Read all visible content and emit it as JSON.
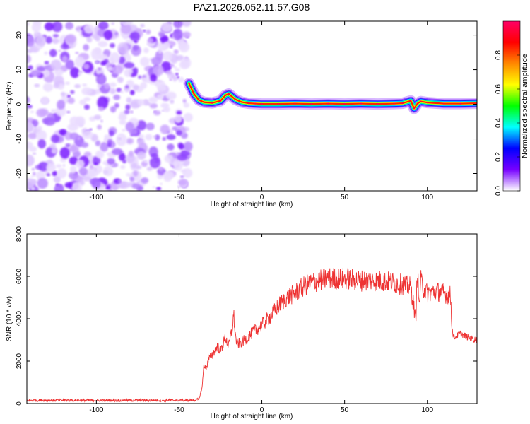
{
  "chart_data": [
    {
      "type": "heatmap",
      "title": "PAZ1.2026.052.11.57.G08",
      "xlabel": "Height of straight line (km)",
      "ylabel": "Frequency (Hz)",
      "xlim": [
        -142,
        130
      ],
      "ylim": [
        -25,
        24
      ],
      "xticks": [
        -100,
        -50,
        0,
        50,
        100
      ],
      "yticks": [
        -20,
        -10,
        0,
        10,
        20
      ],
      "noise_region_x": [
        -142,
        -44
      ],
      "ridge": {
        "x": [
          -44,
          -41,
          -38,
          -35,
          -30,
          -25,
          -22,
          -20,
          -16,
          -12,
          -8,
          -4,
          0,
          10,
          20,
          30,
          40,
          50,
          60,
          70,
          80,
          85,
          90,
          92,
          94,
          96,
          100,
          110,
          120,
          130
        ],
        "freq": [
          6,
          3,
          1.2,
          0.6,
          0.4,
          1.0,
          2.6,
          3.0,
          1.4,
          0.6,
          0.3,
          0.2,
          0.1,
          0.1,
          0.2,
          0.1,
          0.2,
          0.1,
          0.2,
          0.1,
          0.2,
          0.3,
          1.0,
          -1.2,
          0.2,
          0.8,
          0.5,
          0.2,
          0.2,
          0.3
        ]
      },
      "colorbar": {
        "label": "Normalized spectral amplitude",
        "range": [
          0,
          1
        ],
        "ticks": [
          "0.0",
          "0.2",
          "0.4",
          "0.6",
          "0.8"
        ],
        "tick_values": [
          0,
          0.2,
          0.4,
          0.6,
          0.8
        ],
        "colors": [
          "#ffffff",
          "#7700ff",
          "#0000ff",
          "#00ffff",
          "#00ff00",
          "#ffff00",
          "#ff8800",
          "#ff0000",
          "#ff0066"
        ]
      }
    },
    {
      "type": "line",
      "xlabel": "Height of straight line (km)",
      "ylabel": "SNR (10 * v/v)",
      "xlim": [
        -142,
        130
      ],
      "ylim": [
        0,
        8000
      ],
      "xticks": [
        -100,
        -50,
        0,
        50,
        100
      ],
      "yticks": [
        0,
        2000,
        4000,
        6000,
        8000
      ],
      "color": "#ee3333",
      "series": [
        {
          "name": "SNR",
          "x": [
            -142,
            -120,
            -100,
            -80,
            -60,
            -45,
            -40,
            -38,
            -36,
            -35,
            -34,
            -32,
            -30,
            -27,
            -25,
            -22,
            -20,
            -18,
            -17,
            -16,
            -15,
            -12,
            -10,
            -5,
            0,
            5,
            10,
            15,
            20,
            25,
            30,
            40,
            50,
            60,
            70,
            80,
            85,
            90,
            92,
            93,
            94,
            95,
            96,
            98,
            100,
            105,
            110,
            114,
            115,
            116,
            118,
            120,
            125,
            130
          ],
          "y": [
            150,
            160,
            150,
            150,
            150,
            160,
            170,
            200,
            800,
            1900,
            1600,
            2100,
            2300,
            2700,
            2500,
            3100,
            2700,
            3500,
            4200,
            3200,
            2800,
            2900,
            3000,
            3400,
            3700,
            4100,
            4600,
            5000,
            5200,
            5500,
            5700,
            5900,
            5900,
            5800,
            5800,
            5700,
            5600,
            5500,
            4500,
            3800,
            6500,
            4500,
            5800,
            5400,
            5200,
            5300,
            5200,
            5100,
            3500,
            3100,
            3200,
            3300,
            3100,
            3000
          ]
        }
      ]
    }
  ]
}
